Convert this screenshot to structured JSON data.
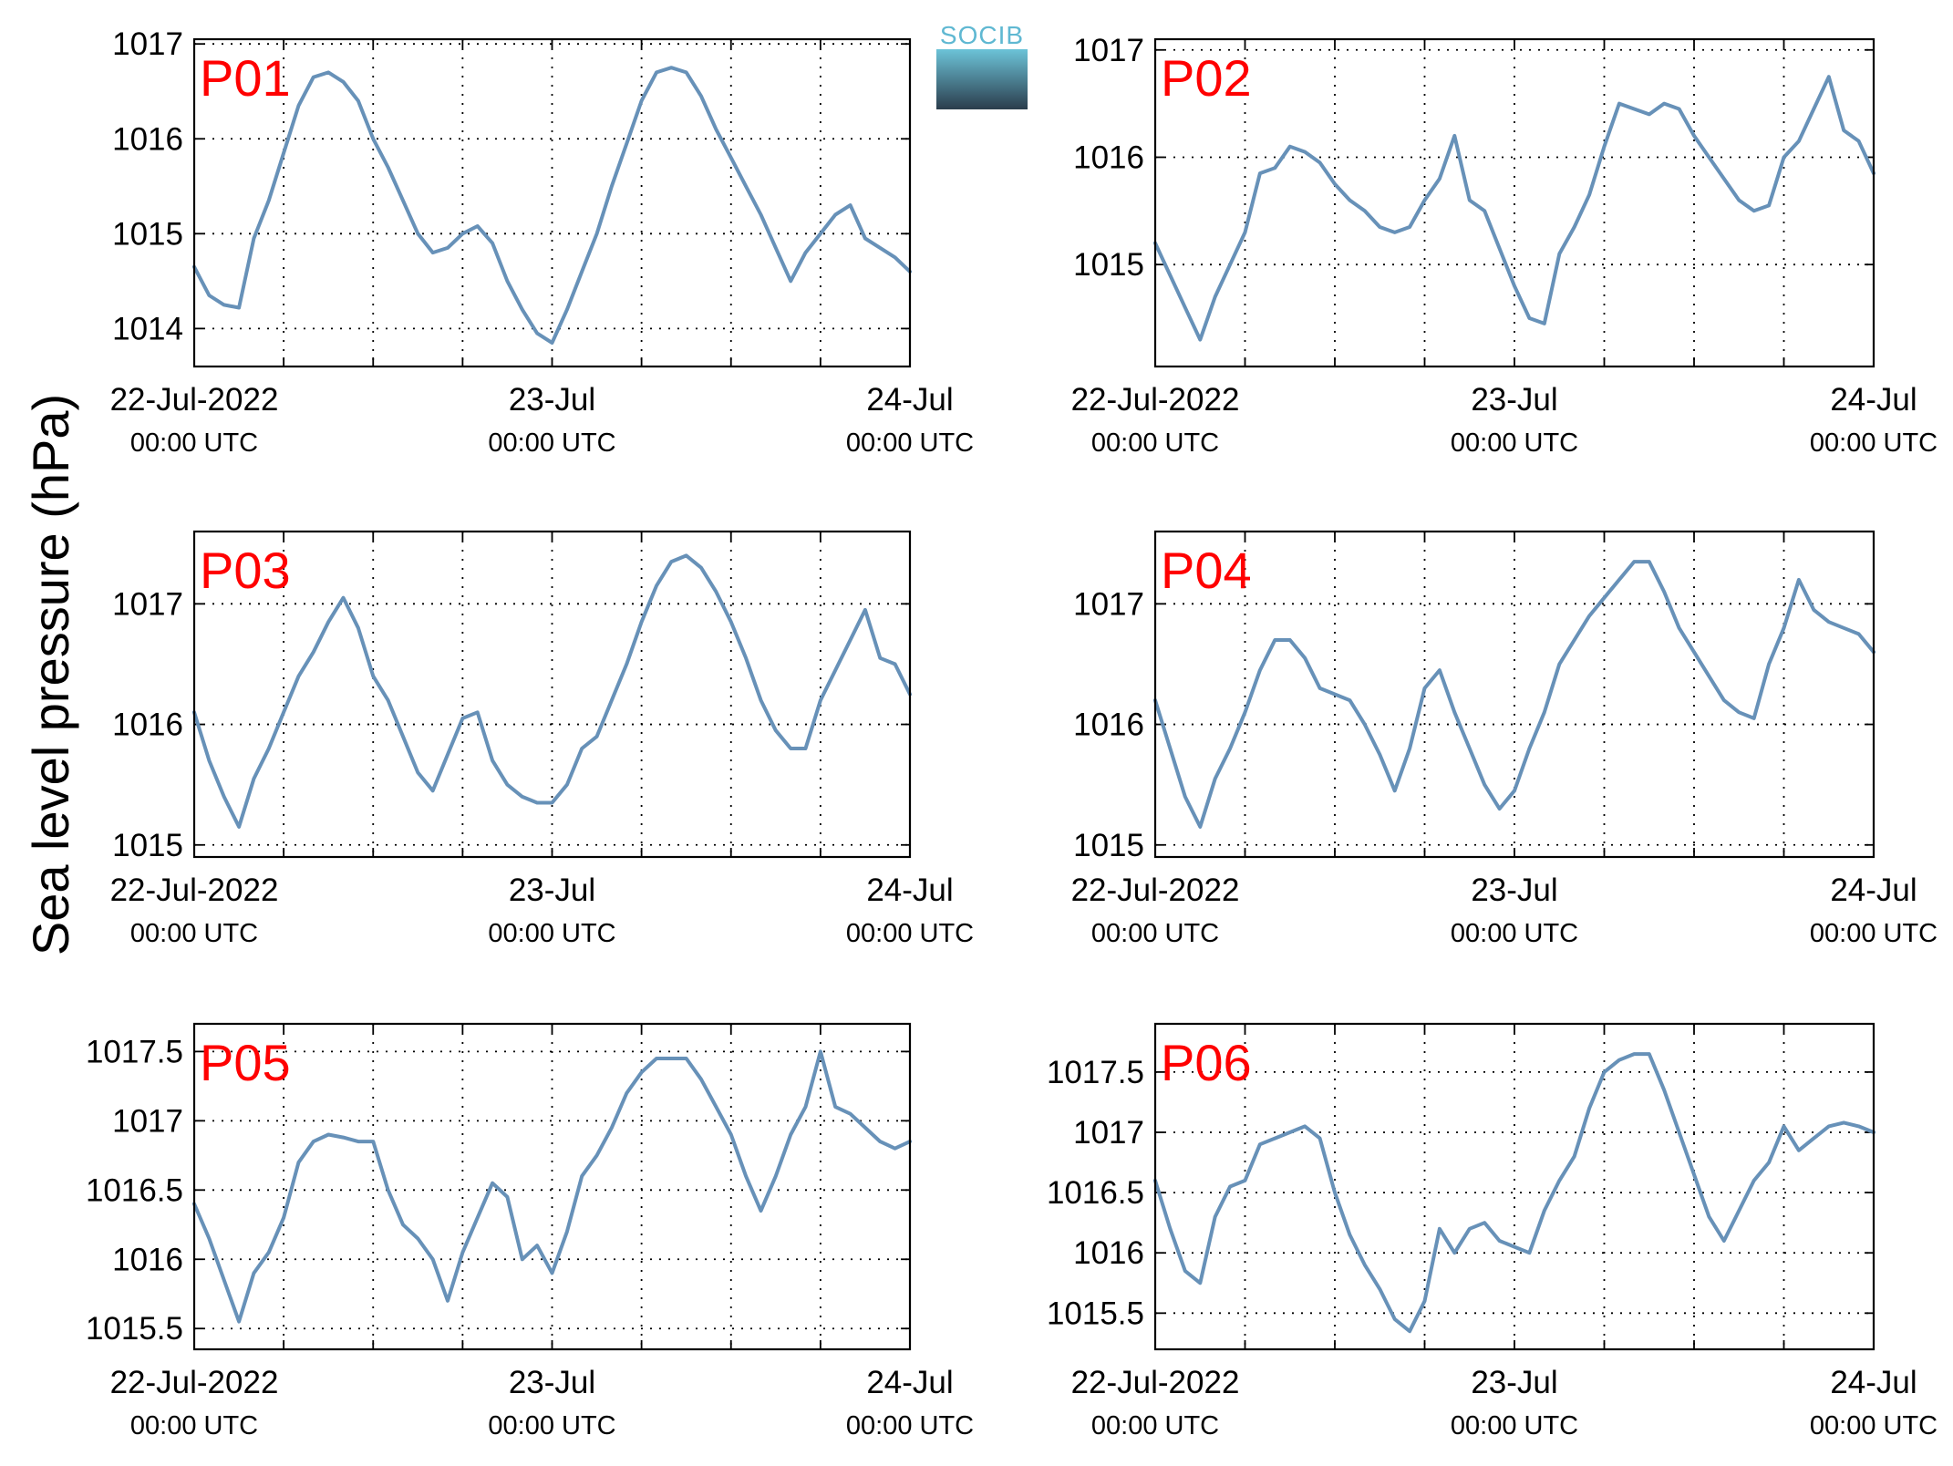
{
  "figure": {
    "ylabel": "Sea level pressure (hPa)",
    "logo_text": "SOCIB",
    "colors": {
      "series": "#6791b8",
      "panel_label": "#ff0000",
      "logo_top": "#6cc3d8",
      "logo_bottom": "#2b3d4c"
    },
    "x_tick_labels": [
      {
        "date": "22-Jul-2022",
        "time": "00:00 UTC"
      },
      {
        "date": "23-Jul",
        "time": "00:00 UTC"
      },
      {
        "date": "24-Jul",
        "time": "00:00 UTC"
      }
    ]
  },
  "chart_data": [
    {
      "type": "line",
      "title": "P01",
      "xlabel": "",
      "ylabel": "Sea level pressure (hPa)",
      "xlim": [
        "2022-07-22T00:00",
        "2022-07-24T00:00"
      ],
      "ylim": [
        1013.6,
        1017.05
      ],
      "yticks": [
        1014,
        1015,
        1016,
        1017
      ],
      "ytick_labels": [
        "1014",
        "1015",
        "1016",
        "1017"
      ],
      "x_hours": [
        0,
        1,
        2,
        3,
        4,
        5,
        6,
        7,
        8,
        9,
        10,
        11,
        12,
        13,
        14,
        15,
        16,
        17,
        18,
        19,
        20,
        21,
        22,
        23,
        24,
        25,
        26,
        27,
        28,
        29,
        30,
        31,
        32,
        33,
        34,
        35,
        36,
        37,
        38,
        39,
        40,
        41,
        42,
        43,
        44,
        45,
        46,
        47,
        48
      ],
      "values": [
        1014.65,
        1014.35,
        1014.25,
        1014.22,
        1014.95,
        1015.35,
        1015.85,
        1016.35,
        1016.65,
        1016.7,
        1016.6,
        1016.4,
        1016.0,
        1015.7,
        1015.35,
        1015.0,
        1014.8,
        1014.85,
        1015.0,
        1015.08,
        1014.9,
        1014.5,
        1014.2,
        1013.95,
        1013.85,
        1014.2,
        1014.6,
        1015.0,
        1015.5,
        1015.95,
        1016.4,
        1016.7,
        1016.75,
        1016.7,
        1016.45,
        1016.1,
        1015.8,
        1015.5,
        1015.2,
        1014.85,
        1014.5,
        1014.8,
        1015.0,
        1015.2,
        1015.3,
        1014.95,
        1014.85,
        1014.75,
        1014.6
      ]
    },
    {
      "type": "line",
      "title": "P02",
      "xlabel": "",
      "ylabel": "Sea level pressure (hPa)",
      "xlim": [
        "2022-07-22T00:00",
        "2022-07-24T00:00"
      ],
      "ylim": [
        1014.05,
        1017.1
      ],
      "yticks": [
        1015,
        1016,
        1017
      ],
      "ytick_labels": [
        "1015",
        "1016",
        "1017"
      ],
      "x_hours": [
        0,
        1,
        2,
        3,
        4,
        5,
        6,
        7,
        8,
        9,
        10,
        11,
        12,
        13,
        14,
        15,
        16,
        17,
        18,
        19,
        20,
        21,
        22,
        23,
        24,
        25,
        26,
        27,
        28,
        29,
        30,
        31,
        32,
        33,
        34,
        35,
        36,
        37,
        38,
        39,
        40,
        41,
        42,
        43,
        44,
        45,
        46,
        47,
        48
      ],
      "values": [
        1015.2,
        1014.9,
        1014.6,
        1014.3,
        1014.7,
        1015.0,
        1015.3,
        1015.85,
        1015.9,
        1016.1,
        1016.05,
        1015.95,
        1015.75,
        1015.6,
        1015.5,
        1015.35,
        1015.3,
        1015.35,
        1015.6,
        1015.8,
        1016.2,
        1015.6,
        1015.5,
        1015.15,
        1014.8,
        1014.5,
        1014.45,
        1015.1,
        1015.35,
        1015.65,
        1016.1,
        1016.5,
        1016.45,
        1016.4,
        1016.5,
        1016.45,
        1016.2,
        1016.0,
        1015.8,
        1015.6,
        1015.5,
        1015.55,
        1016.0,
        1016.15,
        1016.45,
        1016.75,
        1016.25,
        1016.15,
        1015.85
      ]
    },
    {
      "type": "line",
      "title": "P03",
      "xlabel": "",
      "ylabel": "Sea level pressure (hPa)",
      "xlim": [
        "2022-07-22T00:00",
        "2022-07-24T00:00"
      ],
      "ylim": [
        1014.9,
        1017.6
      ],
      "yticks": [
        1015,
        1016,
        1017
      ],
      "ytick_labels": [
        "1015",
        "1016",
        "1017"
      ],
      "x_hours": [
        0,
        1,
        2,
        3,
        4,
        5,
        6,
        7,
        8,
        9,
        10,
        11,
        12,
        13,
        14,
        15,
        16,
        17,
        18,
        19,
        20,
        21,
        22,
        23,
        24,
        25,
        26,
        27,
        28,
        29,
        30,
        31,
        32,
        33,
        34,
        35,
        36,
        37,
        38,
        39,
        40,
        41,
        42,
        43,
        44,
        45,
        46,
        47,
        48
      ],
      "values": [
        1016.1,
        1015.7,
        1015.4,
        1015.15,
        1015.55,
        1015.8,
        1016.1,
        1016.4,
        1016.6,
        1016.85,
        1017.05,
        1016.8,
        1016.4,
        1016.2,
        1015.9,
        1015.6,
        1015.45,
        1015.75,
        1016.05,
        1016.1,
        1015.7,
        1015.5,
        1015.4,
        1015.35,
        1015.35,
        1015.5,
        1015.8,
        1015.9,
        1016.2,
        1016.5,
        1016.85,
        1017.15,
        1017.35,
        1017.4,
        1017.3,
        1017.1,
        1016.85,
        1016.55,
        1016.2,
        1015.95,
        1015.8,
        1015.8,
        1016.2,
        1016.45,
        1016.7,
        1016.95,
        1016.55,
        1016.5,
        1016.25
      ]
    },
    {
      "type": "line",
      "title": "P04",
      "xlabel": "",
      "ylabel": "Sea level pressure (hPa)",
      "xlim": [
        "2022-07-22T00:00",
        "2022-07-24T00:00"
      ],
      "ylim": [
        1014.9,
        1017.6
      ],
      "yticks": [
        1015,
        1016,
        1017
      ],
      "ytick_labels": [
        "1015",
        "1016",
        "1017"
      ],
      "x_hours": [
        0,
        1,
        2,
        3,
        4,
        5,
        6,
        7,
        8,
        9,
        10,
        11,
        12,
        13,
        14,
        15,
        16,
        17,
        18,
        19,
        20,
        21,
        22,
        23,
        24,
        25,
        26,
        27,
        28,
        29,
        30,
        31,
        32,
        33,
        34,
        35,
        36,
        37,
        38,
        39,
        40,
        41,
        42,
        43,
        44,
        45,
        46,
        47,
        48
      ],
      "values": [
        1016.2,
        1015.8,
        1015.4,
        1015.15,
        1015.55,
        1015.8,
        1016.1,
        1016.45,
        1016.7,
        1016.7,
        1016.55,
        1016.3,
        1016.25,
        1016.2,
        1016.0,
        1015.75,
        1015.45,
        1015.8,
        1016.3,
        1016.45,
        1016.1,
        1015.8,
        1015.5,
        1015.3,
        1015.45,
        1015.8,
        1016.1,
        1016.5,
        1016.7,
        1016.9,
        1017.05,
        1017.2,
        1017.35,
        1017.35,
        1017.1,
        1016.8,
        1016.6,
        1016.4,
        1016.2,
        1016.1,
        1016.05,
        1016.5,
        1016.8,
        1017.2,
        1016.95,
        1016.85,
        1016.8,
        1016.75,
        1016.6
      ]
    },
    {
      "type": "line",
      "title": "P05",
      "xlabel": "",
      "ylabel": "Sea level pressure (hPa)",
      "xlim": [
        "2022-07-22T00:00",
        "2022-07-24T00:00"
      ],
      "ylim": [
        1015.35,
        1017.7
      ],
      "yticks": [
        1015.5,
        1016,
        1016.5,
        1017,
        1017.5
      ],
      "ytick_labels": [
        "1015.5",
        "1016",
        "1016.5",
        "1017",
        "1017.5"
      ],
      "x_hours": [
        0,
        1,
        2,
        3,
        4,
        5,
        6,
        7,
        8,
        9,
        10,
        11,
        12,
        13,
        14,
        15,
        16,
        17,
        18,
        19,
        20,
        21,
        22,
        23,
        24,
        25,
        26,
        27,
        28,
        29,
        30,
        31,
        32,
        33,
        34,
        35,
        36,
        37,
        38,
        39,
        40,
        41,
        42,
        43,
        44,
        45,
        46,
        47,
        48
      ],
      "values": [
        1016.4,
        1016.15,
        1015.85,
        1015.55,
        1015.9,
        1016.05,
        1016.3,
        1016.7,
        1016.85,
        1016.9,
        1016.88,
        1016.85,
        1016.85,
        1016.5,
        1016.25,
        1016.15,
        1016.0,
        1015.7,
        1016.05,
        1016.3,
        1016.55,
        1016.45,
        1016.0,
        1016.1,
        1015.9,
        1016.2,
        1016.6,
        1016.75,
        1016.95,
        1017.2,
        1017.35,
        1017.45,
        1017.45,
        1017.45,
        1017.3,
        1017.1,
        1016.9,
        1016.6,
        1016.35,
        1016.6,
        1016.9,
        1017.1,
        1017.5,
        1017.1,
        1017.05,
        1016.95,
        1016.85,
        1016.8,
        1016.85
      ]
    },
    {
      "type": "line",
      "title": "P06",
      "xlabel": "",
      "ylabel": "Sea level pressure (hPa)",
      "xlim": [
        "2022-07-22T00:00",
        "2022-07-24T00:00"
      ],
      "ylim": [
        1015.2,
        1017.9
      ],
      "yticks": [
        1015.5,
        1016,
        1016.5,
        1017,
        1017.5
      ],
      "ytick_labels": [
        "1015.5",
        "1016",
        "1016.5",
        "1017",
        "1017.5"
      ],
      "x_hours": [
        0,
        1,
        2,
        3,
        4,
        5,
        6,
        7,
        8,
        9,
        10,
        11,
        12,
        13,
        14,
        15,
        16,
        17,
        18,
        19,
        20,
        21,
        22,
        23,
        24,
        25,
        26,
        27,
        28,
        29,
        30,
        31,
        32,
        33,
        34,
        35,
        36,
        37,
        38,
        39,
        40,
        41,
        42,
        43,
        44,
        45,
        46,
        47,
        48
      ],
      "values": [
        1016.6,
        1016.2,
        1015.85,
        1015.75,
        1016.3,
        1016.55,
        1016.6,
        1016.9,
        1016.95,
        1017.0,
        1017.05,
        1016.95,
        1016.5,
        1016.15,
        1015.9,
        1015.7,
        1015.45,
        1015.35,
        1015.6,
        1016.2,
        1016.0,
        1016.2,
        1016.25,
        1016.1,
        1016.05,
        1016.0,
        1016.35,
        1016.6,
        1016.8,
        1017.2,
        1017.5,
        1017.6,
        1017.65,
        1017.65,
        1017.35,
        1017.0,
        1016.65,
        1016.3,
        1016.1,
        1016.35,
        1016.6,
        1016.75,
        1017.05,
        1016.85,
        1016.95,
        1017.05,
        1017.08,
        1017.05,
        1017.0
      ]
    }
  ]
}
